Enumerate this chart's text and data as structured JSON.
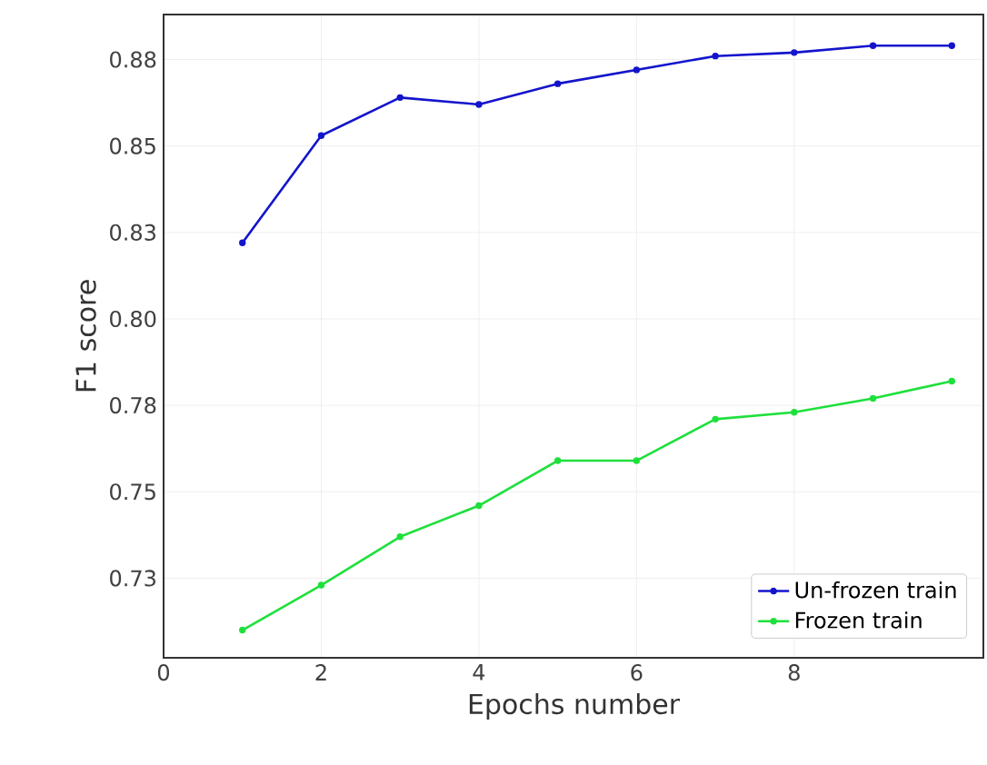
{
  "chart_data": {
    "type": "line",
    "xlabel": "Epochs number",
    "ylabel": "F1 score",
    "x": [
      1,
      2,
      3,
      4,
      5,
      6,
      7,
      8,
      9,
      10
    ],
    "series": [
      {
        "name": "Un-frozen train",
        "color": "#1414cc",
        "values": [
          0.822,
          0.853,
          0.864,
          0.862,
          0.868,
          0.872,
          0.876,
          0.877,
          0.879,
          0.879
        ]
      },
      {
        "name": "Frozen train",
        "color": "#1ee03c",
        "values": [
          0.71,
          0.723,
          0.737,
          0.746,
          0.759,
          0.759,
          0.771,
          0.773,
          0.777,
          0.782
        ]
      }
    ],
    "xlim": [
      0,
      10.4
    ],
    "ylim": [
      0.702,
      0.888
    ],
    "xticks": [
      0,
      2,
      4,
      6,
      8
    ],
    "yticks": [
      {
        "value": 0.725,
        "label": "0.73"
      },
      {
        "value": 0.75,
        "label": "0.75"
      },
      {
        "value": 0.775,
        "label": "0.78"
      },
      {
        "value": 0.8,
        "label": "0.80"
      },
      {
        "value": 0.825,
        "label": "0.83"
      },
      {
        "value": 0.85,
        "label": "0.85"
      },
      {
        "value": 0.875,
        "label": "0.88"
      }
    ],
    "grid": true,
    "legend": "bottom right",
    "marker": "circle",
    "line_style": "solid"
  }
}
